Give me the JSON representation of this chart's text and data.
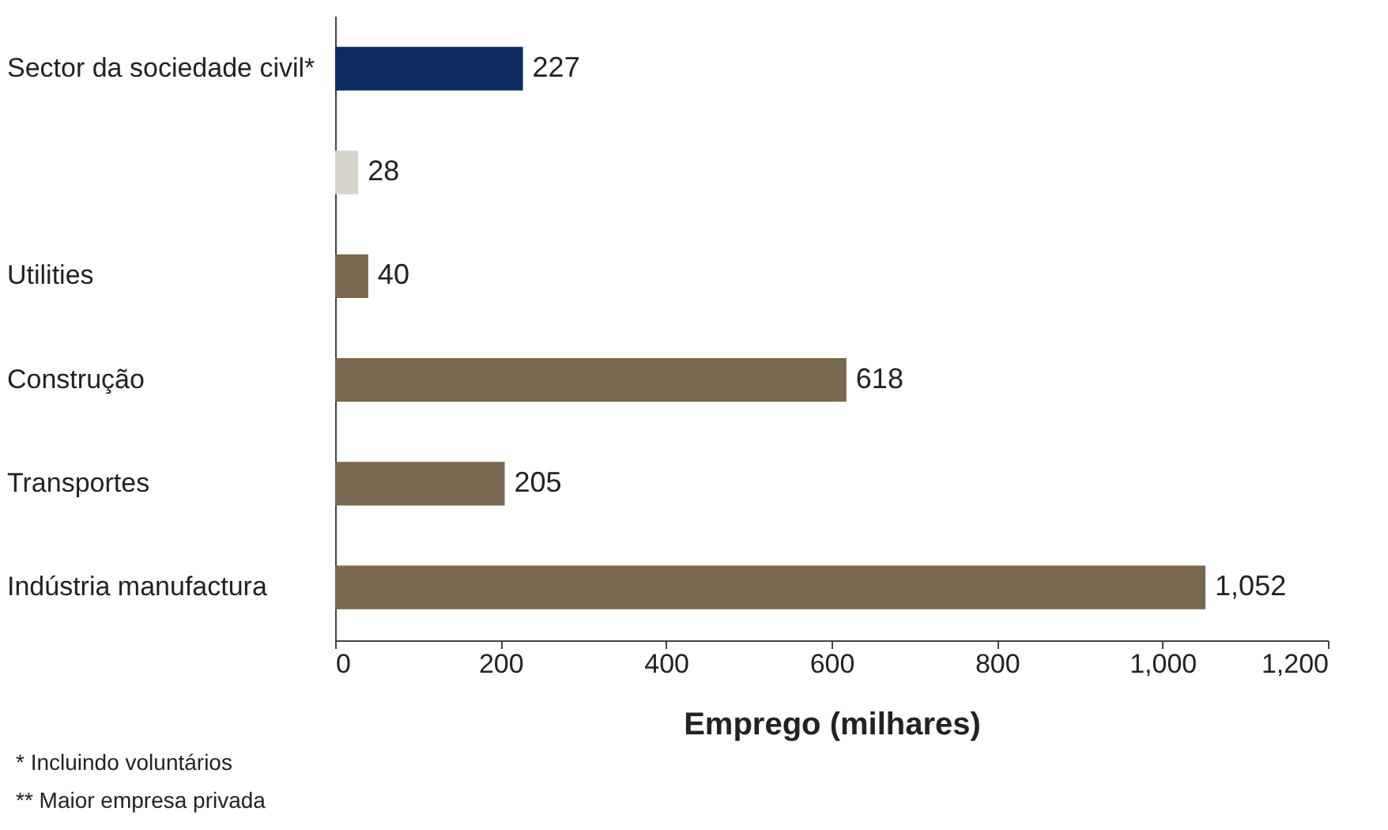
{
  "chart_data": {
    "type": "bar",
    "orientation": "horizontal",
    "categories": [
      "Sector da sociedade civil*",
      null,
      "Utilities",
      "Construção",
      "Transportes",
      "Indústria manufactura"
    ],
    "values": [
      227,
      28,
      40,
      618,
      205,
      1052
    ],
    "colors": [
      "#0d2b5e",
      "#d6d3cd",
      "#7b6851",
      "#7b6851",
      "#7b6851",
      "#7b6851"
    ],
    "xlim": [
      0,
      1200
    ],
    "xticks": [
      0,
      200,
      400,
      600,
      800,
      {
        "value": 1000,
        "label": "1,000"
      },
      {
        "value": 1200,
        "label": "1,200"
      }
    ],
    "value_labels": [
      "227",
      "28",
      "40",
      "618",
      "205",
      "1,052"
    ],
    "xlabel": "Emprego (milhares)",
    "grid": false,
    "annotations": [
      "*   Incluindo voluntários",
      "** Maior empresa privada"
    ]
  }
}
